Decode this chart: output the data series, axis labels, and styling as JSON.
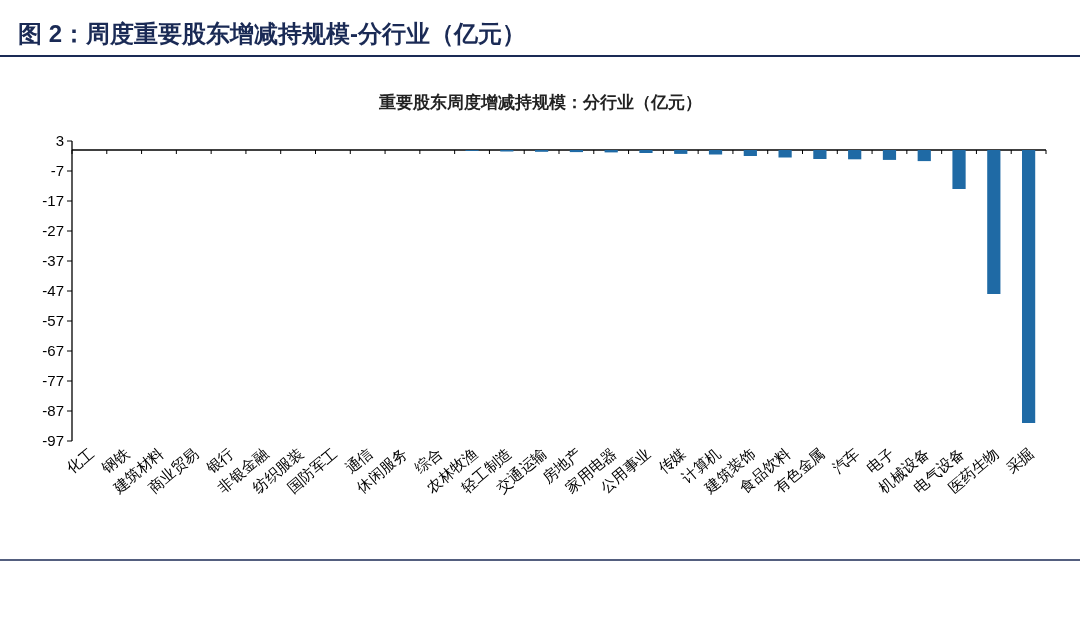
{
  "chart_data": {
    "type": "bar",
    "title": "图 2：周度重要股东增减持规模-分行业（亿元）",
    "subtitle": "重要股东周度增减持规模：分行业（亿元）",
    "categories": [
      "化工",
      "钢铁",
      "建筑材料",
      "商业贸易",
      "银行",
      "非银金融",
      "纺织服装",
      "国防军工",
      "通信",
      "休闲服务",
      "综合",
      "农林牧渔",
      "轻工制造",
      "交通运输",
      "房地产",
      "家用电器",
      "公用事业",
      "传媒",
      "计算机",
      "建筑装饰",
      "食品饮料",
      "有色金属",
      "汽车",
      "电子",
      "机械设备",
      "电气设备",
      "医药生物",
      "采掘"
    ],
    "values": [
      0,
      0,
      0,
      0,
      0,
      0,
      0,
      0,
      0,
      0,
      0,
      -0.3,
      -0.5,
      -0.6,
      -0.7,
      -0.8,
      -1,
      -1.3,
      -1.5,
      -2,
      -2.5,
      -3,
      -3.1,
      -3.3,
      -3.7,
      -13,
      -48,
      -91
    ],
    "color": "#1f6aa5",
    "ylim": [
      -97,
      3
    ],
    "yticks": [
      3,
      -7,
      -17,
      -27,
      -37,
      -47,
      -57,
      -67,
      -77,
      -87,
      -97
    ],
    "grid": false
  }
}
